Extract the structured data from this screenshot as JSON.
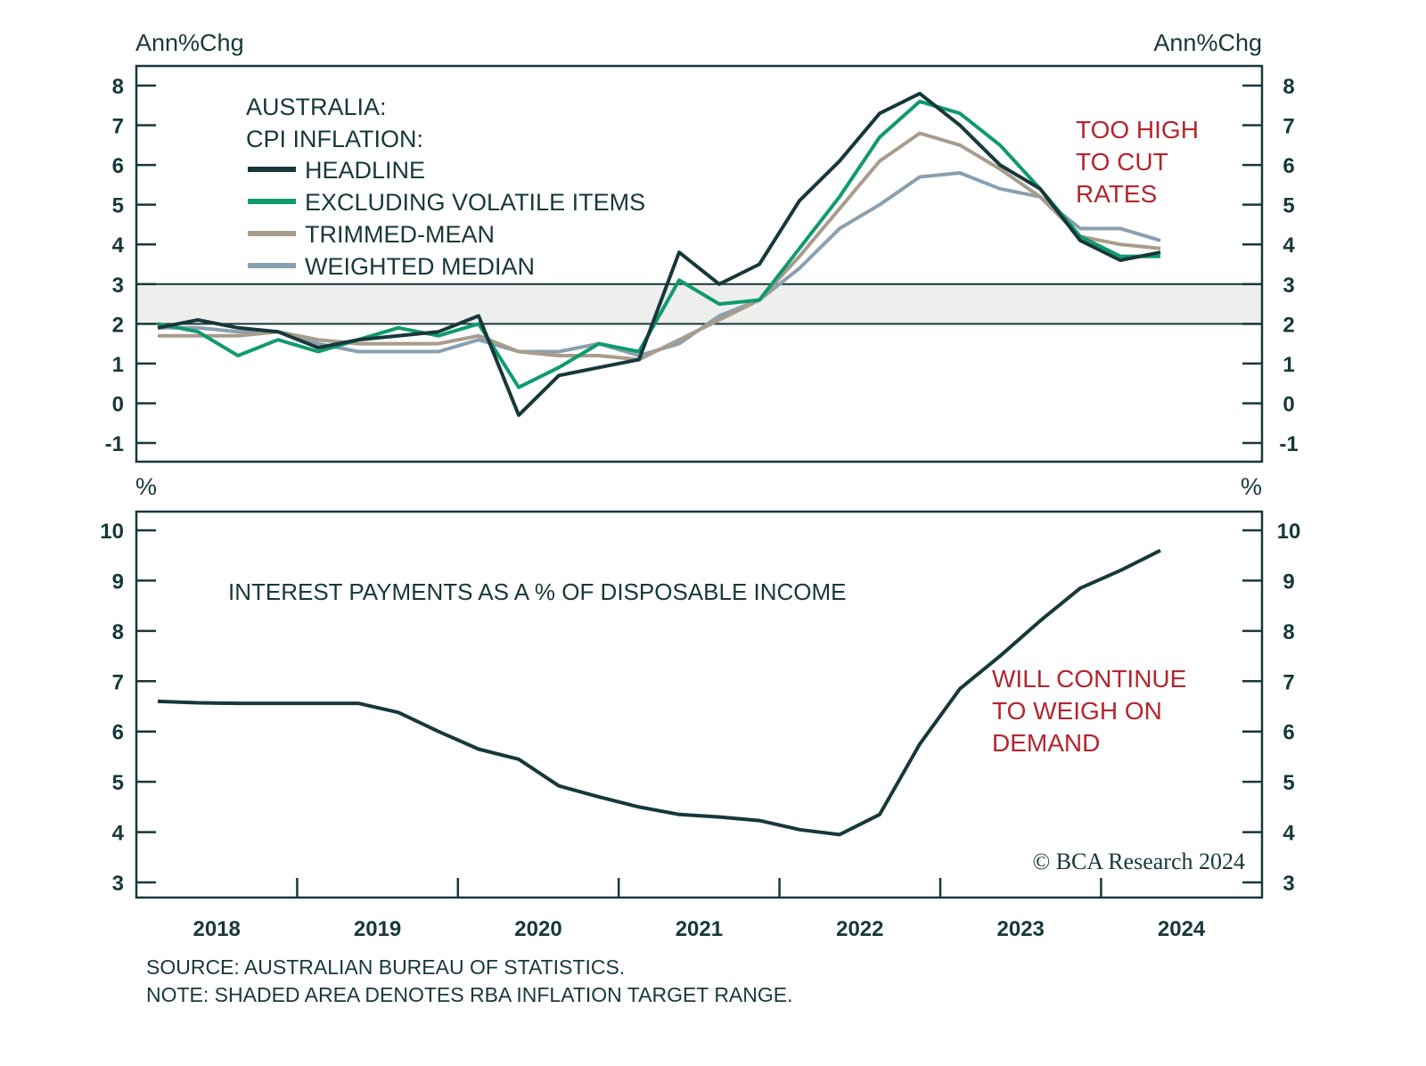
{
  "chart_data": [
    {
      "type": "line",
      "title": "AUSTRALIA: CPI INFLATION:",
      "title_lines": [
        "AUSTRALIA:",
        "CPI INFLATION:"
      ],
      "ylabel_left": "Ann%Chg",
      "ylabel_right": "Ann%Chg",
      "ylim": [
        -1.5,
        8.5
      ],
      "yticks": [
        -1,
        0,
        1,
        2,
        3,
        4,
        5,
        6,
        7,
        8
      ],
      "shaded_band": {
        "from": 2,
        "to": 3,
        "label": "RBA inflation target range"
      },
      "x": [
        "2018Q1",
        "2018Q2",
        "2018Q3",
        "2018Q4",
        "2019Q1",
        "2019Q2",
        "2019Q3",
        "2019Q4",
        "2020Q1",
        "2020Q2",
        "2020Q3",
        "2020Q4",
        "2021Q1",
        "2021Q2",
        "2021Q3",
        "2021Q4",
        "2022Q1",
        "2022Q2",
        "2022Q3",
        "2022Q4",
        "2023Q1",
        "2023Q2",
        "2023Q3",
        "2023Q4",
        "2024Q1",
        "2024Q2"
      ],
      "legend_position": "top-left",
      "series": [
        {
          "name": "HEADLINE",
          "color": "#17383a",
          "values": [
            1.9,
            2.1,
            1.9,
            1.8,
            1.4,
            1.6,
            1.7,
            1.8,
            2.2,
            -0.3,
            0.7,
            0.9,
            1.1,
            3.8,
            3.0,
            3.5,
            5.1,
            6.1,
            7.3,
            7.8,
            7.0,
            6.0,
            5.4,
            4.1,
            3.6,
            3.8
          ]
        },
        {
          "name": "EXCLUDING VOLATILE ITEMS",
          "color": "#0f9a6e",
          "values": [
            2.0,
            1.8,
            1.2,
            1.6,
            1.3,
            1.6,
            1.9,
            1.7,
            2.0,
            0.4,
            0.9,
            1.5,
            1.3,
            3.1,
            2.5,
            2.6,
            3.9,
            5.2,
            6.7,
            7.6,
            7.3,
            6.5,
            5.4,
            4.2,
            3.7,
            3.7
          ]
        },
        {
          "name": "TRIMMED-MEAN",
          "color": "#a89c8c",
          "values": [
            1.7,
            1.7,
            1.7,
            1.8,
            1.6,
            1.5,
            1.5,
            1.5,
            1.7,
            1.3,
            1.2,
            1.2,
            1.1,
            1.6,
            2.1,
            2.6,
            3.7,
            4.9,
            6.1,
            6.8,
            6.5,
            5.9,
            5.2,
            4.2,
            4.0,
            3.9
          ]
        },
        {
          "name": "WEIGHTED MEDIAN",
          "color": "#8aa0b0",
          "values": [
            1.9,
            1.9,
            1.8,
            1.8,
            1.5,
            1.3,
            1.3,
            1.3,
            1.6,
            1.3,
            1.3,
            1.5,
            1.2,
            1.5,
            2.2,
            2.6,
            3.4,
            4.4,
            5.0,
            5.7,
            5.8,
            5.4,
            5.2,
            4.4,
            4.4,
            4.1
          ]
        }
      ],
      "annotation": [
        "TOO HIGH",
        "TO CUT",
        "RATES"
      ]
    },
    {
      "type": "line",
      "title": "INTEREST PAYMENTS AS A % OF DISPOSABLE INCOME",
      "ylabel_left": "%",
      "ylabel_right": "%",
      "ylim": [
        2.8,
        10.3
      ],
      "yticks": [
        3,
        4,
        5,
        6,
        7,
        8,
        9,
        10
      ],
      "x": [
        "2018Q1",
        "2018Q2",
        "2018Q3",
        "2018Q4",
        "2019Q1",
        "2019Q2",
        "2019Q3",
        "2019Q4",
        "2020Q1",
        "2020Q2",
        "2020Q3",
        "2020Q4",
        "2021Q1",
        "2021Q2",
        "2021Q3",
        "2021Q4",
        "2022Q1",
        "2022Q2",
        "2022Q3",
        "2022Q4",
        "2023Q1",
        "2023Q2",
        "2023Q3",
        "2023Q4",
        "2024Q1",
        "2024Q2"
      ],
      "series": [
        {
          "name": "INTEREST PAYMENTS AS A % OF DISPOSABLE INCOME",
          "color": "#17383a",
          "values": [
            6.6,
            6.57,
            6.56,
            6.56,
            6.56,
            6.56,
            6.38,
            6.0,
            5.65,
            5.45,
            4.92,
            4.7,
            4.5,
            4.35,
            4.3,
            4.23,
            4.05,
            3.95,
            4.35,
            5.75,
            6.85,
            7.5,
            8.2,
            8.85,
            9.2,
            9.6
          ]
        }
      ],
      "annotation": [
        "WILL CONTINUE",
        "TO WEIGH ON",
        "DEMAND"
      ]
    }
  ],
  "x_axis": {
    "year_labels": [
      "2018",
      "2019",
      "2020",
      "2021",
      "2022",
      "2023",
      "2024"
    ]
  },
  "footnotes": {
    "source": "SOURCE: AUSTRALIAN BUREAU OF STATISTICS.",
    "note": "NOTE: SHADED AREA DENOTES RBA INFLATION TARGET RANGE."
  },
  "copyright": "© BCA Research 2024",
  "colors": {
    "axis": "#17383a",
    "annotation_red": "#b3262e",
    "band_fill": "#eeeeec"
  }
}
